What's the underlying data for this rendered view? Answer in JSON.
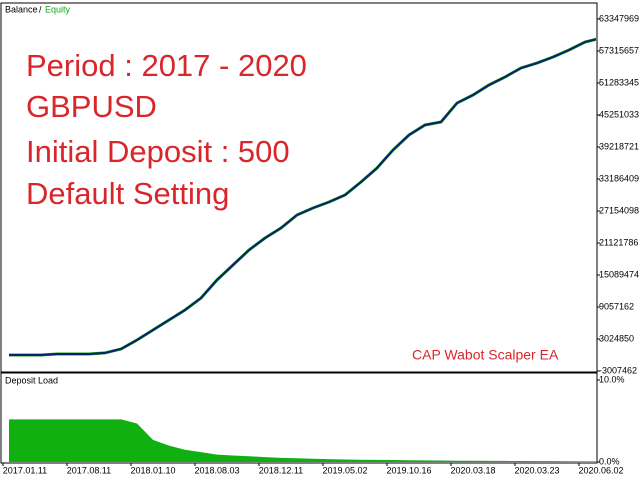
{
  "chart_data": [
    {
      "type": "line",
      "legend": [
        "Balance",
        "Equity"
      ],
      "legend_separator": "/",
      "annotations": [
        "Period : 2017 - 2020",
        "GBPUSD",
        "Initial Deposit : 500",
        "Default Setting"
      ],
      "watermark": "CAP Wabot Scalper EA",
      "categories": [
        null,
        "2017.01.11",
        null,
        null,
        null,
        "2017.08.11",
        null,
        null,
        null,
        "2018.01.10",
        null,
        null,
        null,
        "2018.08.03",
        null,
        null,
        null,
        "2018.12.11",
        null,
        null,
        null,
        "2019.05.02",
        null,
        null,
        null,
        "2019.10.16",
        null,
        null,
        null,
        "2020.03.18",
        null,
        null,
        null,
        "2020.03.23",
        null,
        null,
        null,
        "2020.06.02"
      ],
      "series": [
        {
          "name": "Equity",
          "color": "#18a418",
          "values": [
            10000,
            10000,
            10000,
            200000,
            200000,
            200000,
            400000,
            1140000,
            2836000,
            4720000,
            6610000,
            8490000,
            10750000,
            14150000,
            16970000,
            19800000,
            22060000,
            23950000,
            26400000,
            27720000,
            28850000,
            30170000,
            32620000,
            35260000,
            38650000,
            41480000,
            43370000,
            43930000,
            47510000,
            49020000,
            50910000,
            52410000,
            54110000,
            55050000,
            56180000,
            57500000,
            59010000,
            59760000
          ]
        },
        {
          "name": "Balance",
          "color": "#0a1f6e",
          "values": [
            10000,
            10000,
            10000,
            200000,
            200000,
            200000,
            400000,
            1140000,
            2836000,
            4720000,
            6610000,
            8490000,
            10750000,
            14150000,
            16970000,
            19800000,
            22060000,
            23950000,
            26400000,
            27720000,
            28850000,
            30170000,
            32620000,
            35260000,
            38650000,
            41480000,
            43370000,
            43930000,
            47510000,
            49020000,
            50910000,
            52410000,
            54110000,
            55050000,
            56180000,
            57500000,
            59010000,
            59760000
          ]
        }
      ],
      "ylim": [
        -3007462,
        63347969
      ],
      "yticks": [
        63347969,
        57315657,
        51283345,
        45251033,
        39218721,
        33186409,
        27154098,
        21121786,
        15089474,
        9057162,
        3024850,
        -3007462
      ]
    },
    {
      "type": "area",
      "title": "Deposit Load",
      "color": "#10b010",
      "values": [
        5.2,
        5.2,
        5.2,
        5.2,
        5.2,
        5.2,
        5.2,
        5.2,
        4.7,
        2.7,
        2.0,
        1.5,
        1.2,
        0.9,
        0.8,
        0.7,
        0.6,
        0.5,
        0.45,
        0.4,
        0.35,
        0.3,
        0.28,
        0.26,
        0.24,
        0.22,
        0.2,
        0.18,
        0.16,
        0.15,
        0.14,
        0.13,
        0.12,
        0.11,
        0.1,
        0.09,
        0.08,
        0.07
      ],
      "ylim": [
        0,
        10
      ],
      "yticks": [
        {
          "value": 10,
          "label": "10.0%"
        },
        {
          "value": 0,
          "label": "0.0%"
        }
      ]
    }
  ]
}
